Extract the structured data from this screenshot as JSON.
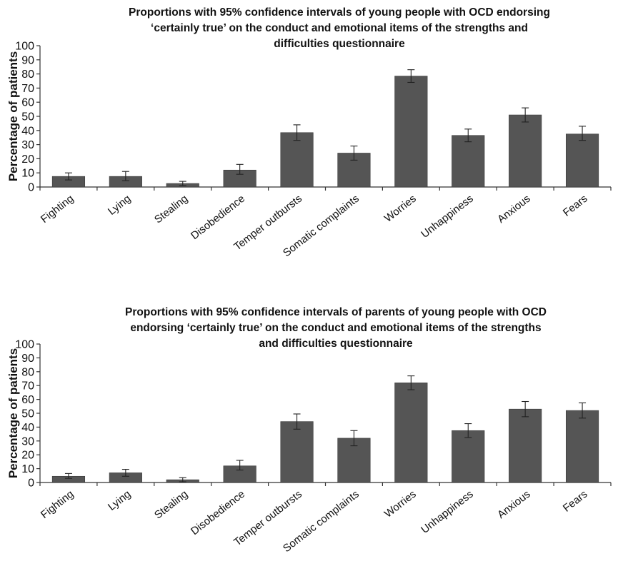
{
  "chart_data": [
    {
      "type": "bar",
      "title_lines": [
        "Proportions with 95% confidence intervals of young people with OCD endorsing",
        "‘certainly true’ on the conduct and emotional items of the strengths and",
        "difficulties questionnaire"
      ],
      "ylabel": "Percentage of patients",
      "ylim": [
        0,
        100
      ],
      "yticks": [
        0,
        10,
        20,
        30,
        40,
        50,
        60,
        70,
        80,
        90,
        100
      ],
      "categories": [
        "Fighting",
        "Lying",
        "Stealing",
        "Disobedience",
        "Temper outbursts",
        "Somatic complaints",
        "Worries",
        "Unhappiness",
        "Anxious",
        "Fears"
      ],
      "values": [
        7.5,
        7.5,
        2.5,
        12,
        38.5,
        24,
        78.5,
        36.5,
        51,
        37.5
      ],
      "ci_low": [
        5,
        4.5,
        1,
        9,
        33,
        19,
        74,
        32,
        46,
        33
      ],
      "ci_high": [
        10,
        11,
        4,
        16,
        44,
        29,
        83,
        41,
        56,
        43
      ],
      "grid": false,
      "legend": "none"
    },
    {
      "type": "bar",
      "title_lines": [
        "Proportions with 95% confidence intervals of parents of young people with OCD",
        "endorsing ‘certainly true’ on the conduct and emotional items of the strengths",
        "and difficulties questionnaire"
      ],
      "ylabel": "Percentage of patients",
      "ylim": [
        0,
        100
      ],
      "yticks": [
        0,
        10,
        20,
        30,
        40,
        50,
        60,
        70,
        80,
        90,
        100
      ],
      "categories": [
        "Fighting",
        "Lying",
        "Stealing",
        "Disobedience",
        "Temper outbursts",
        "Somatic complaints",
        "Worries",
        "Unhappiness",
        "Anxious",
        "Fears"
      ],
      "values": [
        4.5,
        7,
        2,
        12,
        44,
        32,
        72,
        37.5,
        53,
        52
      ],
      "ci_low": [
        3,
        4.5,
        0.5,
        9,
        38.5,
        26.5,
        67,
        32.5,
        47.5,
        46.5
      ],
      "ci_high": [
        6.5,
        9.5,
        3.5,
        16,
        49.5,
        37.5,
        77,
        42.5,
        58.5,
        57.5
      ],
      "grid": false,
      "legend": "none"
    }
  ]
}
